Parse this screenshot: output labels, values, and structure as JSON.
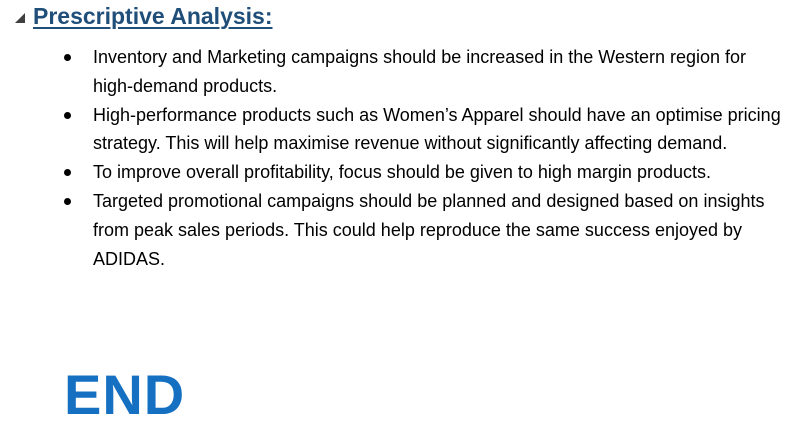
{
  "section": {
    "heading": "Prescriptive Analysis:",
    "toggle_icon": "collapse-triangle-icon"
  },
  "bullets": [
    {
      "text": "Inventory and Marketing campaigns should be increased in the Western region for high-demand products."
    },
    {
      "text": "High-performance products such as Women’s Apparel should have an optimise pricing strategy. This will help maximise revenue without significantly affecting demand."
    },
    {
      "text": "To improve overall profitability, focus should be given to high margin products."
    },
    {
      "text": "Targeted promotional campaigns should be planned and designed based on insights from peak sales periods. This could help reproduce the same success enjoyed by ADIDAS."
    }
  ],
  "end_title": "END",
  "colors": {
    "heading": "#1f4e79",
    "end_title": "#1570c2",
    "body_text": "#000000"
  }
}
